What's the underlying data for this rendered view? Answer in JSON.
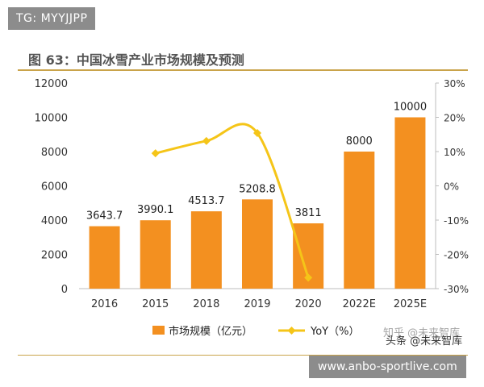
{
  "top_tag": "TG: MYYJJPP",
  "bottom_tag": "www.anbo-sportlive.com",
  "watermark": {
    "line1": "知乎 @未来智库",
    "line2": "头条 @未来智库"
  },
  "colors": {
    "bar": "#F39020",
    "line": "#F5C518",
    "accent_rule": "#C9A34A"
  },
  "chart_data": {
    "type": "bar",
    "title": "图 63：中国冰雪产业市场规模及预测",
    "categories": [
      "2016",
      "2015",
      "2018",
      "2019",
      "2020",
      "2022E",
      "2025E"
    ],
    "series": [
      {
        "name": "市场规模（亿元）",
        "type": "bar",
        "axis": "left",
        "values": [
          3643.7,
          3990.1,
          4513.7,
          5208.8,
          3811,
          8000,
          10000
        ],
        "labels": [
          "3643.7",
          "3990.1",
          "4513.7",
          "5208.8",
          "3811",
          "8000",
          "10000"
        ]
      },
      {
        "name": "YoY（%）",
        "type": "line",
        "axis": "right",
        "values": [
          null,
          9.5,
          13.1,
          15.4,
          -26.8,
          null,
          null
        ]
      }
    ],
    "y_left": {
      "min": 0,
      "max": 12000,
      "ticks": [
        "0",
        "2000",
        "4000",
        "6000",
        "8000",
        "10000",
        "12000"
      ]
    },
    "y_right": {
      "min": -30,
      "max": 30,
      "ticks": [
        "-30%",
        "-20%",
        "-10%",
        "0%",
        "10%",
        "20%",
        "30%"
      ]
    },
    "legend_position": "bottom",
    "grid": false
  }
}
